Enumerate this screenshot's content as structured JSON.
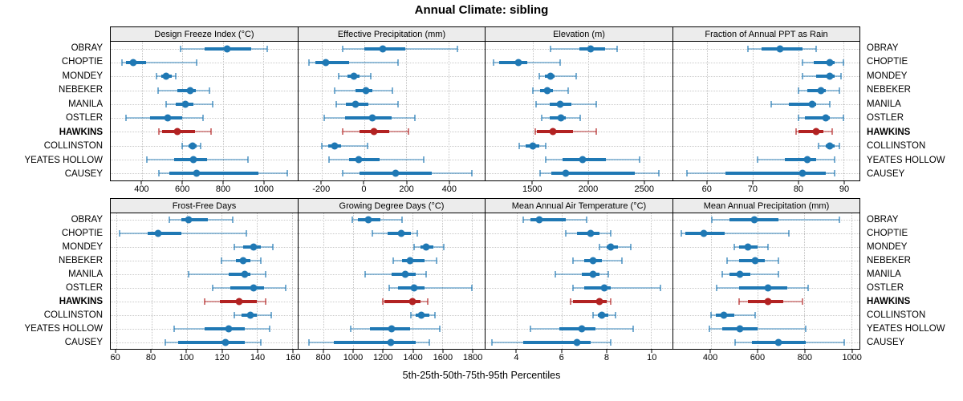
{
  "title": "Annual Climate: sibling",
  "caption": "5th-25th-50th-75th-95th Percentiles",
  "colors": {
    "series_default": "#1f78b4",
    "series_highlight": "#b22222",
    "strip_background": "#ececec",
    "grid": "#c6c6c6",
    "panel_border": "#000000"
  },
  "stations": [
    "OBRAY",
    "CHOPTIE",
    "MONDEY",
    "NEBEKER",
    "MANILA",
    "OSTLER",
    "HAWKINS",
    "COLLINSTON",
    "YEATES HOLLOW",
    "CAUSEY"
  ],
  "highlight_station": "HAWKINS",
  "percentiles": [
    5,
    25,
    50,
    75,
    95
  ],
  "chart_data": [
    {
      "type": "dot-whisker-percentiles",
      "title": "Design Freeze Index (°C)",
      "xlim": [
        245,
        1170
      ],
      "ticks": [
        400,
        600,
        800,
        1000
      ],
      "values": [
        [
          590,
          710,
          820,
          940,
          1020
        ],
        [
          300,
          320,
          355,
          420,
          670
        ],
        [
          470,
          495,
          520,
          545,
          565
        ],
        [
          480,
          575,
          640,
          665,
          735
        ],
        [
          520,
          565,
          615,
          655,
          750
        ],
        [
          320,
          440,
          525,
          600,
          700
        ],
        [
          485,
          500,
          575,
          660,
          740
        ],
        [
          600,
          630,
          650,
          670,
          690
        ],
        [
          425,
          560,
          655,
          720,
          925
        ],
        [
          485,
          535,
          670,
          975,
          1120
        ]
      ]
    },
    {
      "type": "dot-whisker-percentiles",
      "title": "Effective Precipitation (mm)",
      "xlim": [
        -310,
        570
      ],
      "ticks": [
        -200,
        0,
        200,
        400
      ],
      "values": [
        [
          -100,
          0,
          90,
          195,
          440
        ],
        [
          -260,
          -230,
          -180,
          -70,
          160
        ],
        [
          -120,
          -80,
          -50,
          -20,
          30
        ],
        [
          -140,
          -40,
          10,
          40,
          135
        ],
        [
          -130,
          -85,
          -40,
          20,
          160
        ],
        [
          -190,
          -90,
          40,
          130,
          240
        ],
        [
          -100,
          -20,
          45,
          120,
          210
        ],
        [
          -200,
          -170,
          -140,
          -110,
          15
        ],
        [
          -165,
          -70,
          -25,
          75,
          280
        ],
        [
          -100,
          -20,
          150,
          320,
          510
        ]
      ]
    },
    {
      "type": "dot-whisker-percentiles",
      "title": "Elevation (m)",
      "xlim": [
        1075,
        2760
      ],
      "ticks": [
        1500,
        2000,
        2500
      ],
      "values": [
        [
          1660,
          1920,
          2020,
          2150,
          2260
        ],
        [
          1150,
          1200,
          1370,
          1450,
          1750
        ],
        [
          1560,
          1610,
          1660,
          1700,
          1890
        ],
        [
          1500,
          1570,
          1630,
          1680,
          1820
        ],
        [
          1530,
          1650,
          1750,
          1850,
          2070
        ],
        [
          1580,
          1650,
          1755,
          1800,
          1930
        ],
        [
          1520,
          1540,
          1680,
          1860,
          2070
        ],
        [
          1380,
          1440,
          1500,
          1560,
          1620
        ],
        [
          1620,
          1770,
          1950,
          2160,
          2460
        ],
        [
          1570,
          1670,
          1800,
          2420,
          2640
        ]
      ]
    },
    {
      "type": "dot-whisker-percentiles",
      "title": "Fraction of Annual PPT as Rain",
      "xlim": [
        52.5,
        93.5
      ],
      "ticks": [
        60,
        70,
        80,
        90
      ],
      "values": [
        [
          69,
          72,
          76,
          81,
          84
        ],
        [
          81,
          83.5,
          87,
          88,
          90
        ],
        [
          81,
          84,
          87,
          88,
          89.5
        ],
        [
          80,
          82,
          85,
          86,
          89
        ],
        [
          74,
          78,
          83,
          84,
          87
        ],
        [
          80,
          81.5,
          86,
          87,
          90
        ],
        [
          79.5,
          80,
          84,
          85.5,
          87.5
        ],
        [
          84.5,
          86,
          87,
          88,
          89
        ],
        [
          71,
          77,
          82,
          84,
          88
        ],
        [
          55.5,
          64,
          81,
          86,
          88
        ]
      ]
    },
    {
      "type": "dot-whisker-percentiles",
      "title": "Frost-Free Days",
      "xlim": [
        57,
        163
      ],
      "ticks": [
        60,
        80,
        100,
        120,
        140,
        160
      ],
      "values": [
        [
          90,
          97,
          101,
          112,
          126
        ],
        [
          62,
          78,
          84,
          97,
          134
        ],
        [
          127,
          132,
          138,
          142,
          149
        ],
        [
          120,
          128,
          132,
          136,
          142
        ],
        [
          101,
          124,
          133,
          136,
          145
        ],
        [
          115,
          125,
          138,
          144,
          156
        ],
        [
          110,
          119,
          130,
          140,
          145
        ],
        [
          127,
          131,
          136,
          140,
          148
        ],
        [
          93,
          110,
          124,
          133,
          147
        ],
        [
          88,
          95,
          122,
          133,
          142
        ]
      ]
    },
    {
      "type": "dot-whisker-percentiles",
      "title": "Growing Degree Days (°C)",
      "xlim": [
        630,
        1885
      ],
      "ticks": [
        800,
        1000,
        1200,
        1400,
        1600,
        1800
      ],
      "values": [
        [
          990,
          1030,
          1100,
          1180,
          1330
        ],
        [
          1130,
          1230,
          1320,
          1390,
          1430
        ],
        [
          1410,
          1450,
          1490,
          1540,
          1610
        ],
        [
          1270,
          1330,
          1380,
          1480,
          1560
        ],
        [
          1080,
          1260,
          1350,
          1420,
          1490
        ],
        [
          1240,
          1300,
          1410,
          1480,
          1800
        ],
        [
          1200,
          1210,
          1400,
          1450,
          1500
        ],
        [
          1390,
          1420,
          1460,
          1510,
          1550
        ],
        [
          980,
          1110,
          1260,
          1380,
          1580
        ],
        [
          700,
          870,
          1250,
          1420,
          1510
        ]
      ]
    },
    {
      "type": "dot-whisker-percentiles",
      "title": "Mean Annual Air Temperature (°C)",
      "xlim": [
        2.6,
        10.95
      ],
      "ticks": [
        4,
        6,
        8,
        10
      ],
      "values": [
        [
          4.3,
          4.6,
          5.0,
          6.2,
          7.1
        ],
        [
          6.2,
          6.7,
          7.3,
          7.7,
          8.2
        ],
        [
          7.7,
          8.0,
          8.2,
          8.5,
          9.1
        ],
        [
          6.5,
          7.0,
          7.4,
          7.8,
          8.7
        ],
        [
          5.7,
          6.9,
          7.4,
          7.7,
          8.1
        ],
        [
          6.5,
          7.0,
          7.9,
          8.2,
          10.4
        ],
        [
          6.4,
          6.5,
          7.7,
          8.0,
          8.2
        ],
        [
          7.4,
          7.6,
          7.8,
          8.1,
          8.4
        ],
        [
          4.6,
          5.9,
          6.9,
          7.5,
          9.2
        ],
        [
          2.9,
          4.3,
          6.7,
          7.3,
          8.2
        ]
      ]
    },
    {
      "type": "dot-whisker-percentiles",
      "title": "Mean Annual Precipitation (mm)",
      "xlim": [
        240,
        1035
      ],
      "ticks": [
        400,
        600,
        800,
        1000
      ],
      "values": [
        [
          405,
          480,
          585,
          690,
          950
        ],
        [
          275,
          290,
          370,
          460,
          735
        ],
        [
          500,
          520,
          560,
          600,
          645
        ],
        [
          470,
          520,
          590,
          630,
          690
        ],
        [
          450,
          480,
          525,
          570,
          690
        ],
        [
          425,
          520,
          645,
          725,
          815
        ],
        [
          520,
          560,
          645,
          710,
          790
        ],
        [
          400,
          420,
          455,
          500,
          590
        ],
        [
          395,
          450,
          525,
          600,
          805
        ],
        [
          505,
          575,
          690,
          805,
          970
        ]
      ]
    }
  ]
}
